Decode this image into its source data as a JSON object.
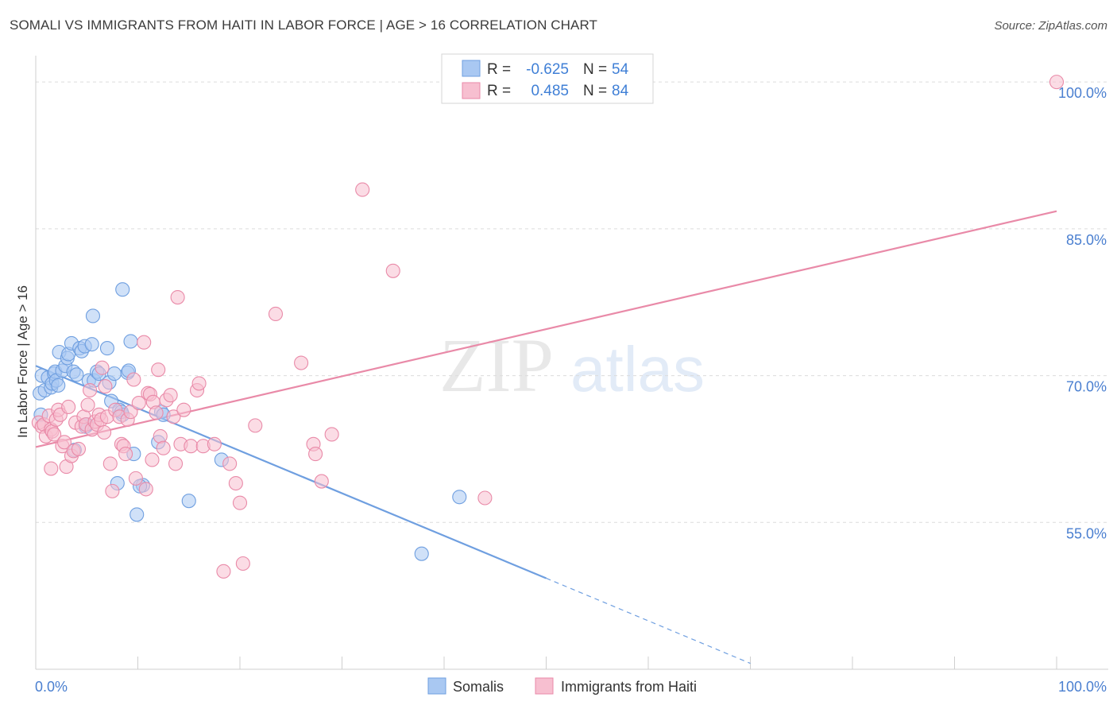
{
  "title": "SOMALI VS IMMIGRANTS FROM HAITI IN LABOR FORCE | AGE > 16 CORRELATION CHART",
  "source": "Source: ZipAtlas.com",
  "watermark": {
    "zip": "ZIP",
    "atlas": "atlas"
  },
  "legend": {
    "rows": [
      {
        "r_label": "R =",
        "r_value": "-0.625",
        "n_label": "N =",
        "n_value": "54",
        "color": "#a9c8f2",
        "stroke": "#6f9fe0"
      },
      {
        "r_label": "R =",
        "r_value": "0.485",
        "n_label": "N =",
        "n_value": "84",
        "color": "#f7bfd0",
        "stroke": "#e98aa8"
      }
    ]
  },
  "bottom_legend": [
    {
      "label": "Somalis",
      "color": "#a9c8f2",
      "stroke": "#6f9fe0"
    },
    {
      "label": "Immigrants from Haiti",
      "color": "#f7bfd0",
      "stroke": "#e98aa8"
    }
  ],
  "chart_data": {
    "type": "scatter",
    "title": "SOMALI VS IMMIGRANTS FROM HAITI IN LABOR FORCE | AGE > 16 CORRELATION CHART",
    "xlabel": "",
    "ylabel": "In Labor Force | Age > 16",
    "xlim": [
      0,
      100
    ],
    "ylim": [
      40,
      102
    ],
    "x_tick_labels": [
      {
        "value": 0,
        "label": "0.0%"
      },
      {
        "value": 100,
        "label": "100.0%"
      }
    ],
    "y_tick_labels": [
      {
        "value": 100,
        "label": "100.0%"
      },
      {
        "value": 85,
        "label": "85.0%"
      },
      {
        "value": 70,
        "label": "70.0%"
      },
      {
        "value": 55,
        "label": "55.0%"
      }
    ],
    "grid": true,
    "series": [
      {
        "name": "Somalis",
        "color": "#6f9fe0",
        "fill": "#a9c8f2",
        "trend": {
          "x0": 0,
          "y0": 71.0,
          "x1": 50,
          "y1": 49.3,
          "dash_to_x": 70,
          "dash_to_y": 40.6
        },
        "points": [
          [
            0.4,
            68.2
          ],
          [
            0.6,
            70.0
          ],
          [
            0.9,
            68.5
          ],
          [
            1.2,
            69.8
          ],
          [
            1.5,
            68.8
          ],
          [
            1.6,
            69.2
          ],
          [
            1.8,
            70.2
          ],
          [
            1.9,
            70.4
          ],
          [
            2.0,
            69.5
          ],
          [
            2.2,
            69.0
          ],
          [
            2.3,
            72.4
          ],
          [
            2.6,
            70.5
          ],
          [
            2.9,
            71.0
          ],
          [
            3.1,
            71.8
          ],
          [
            3.2,
            72.2
          ],
          [
            3.5,
            73.3
          ],
          [
            3.7,
            70.4
          ],
          [
            4.0,
            70.1
          ],
          [
            4.3,
            72.8
          ],
          [
            4.5,
            72.5
          ],
          [
            4.8,
            73.0
          ],
          [
            4.9,
            64.8
          ],
          [
            5.2,
            69.5
          ],
          [
            5.5,
            73.2
          ],
          [
            5.6,
            76.1
          ],
          [
            5.7,
            69.5
          ],
          [
            6.0,
            70.4
          ],
          [
            6.2,
            70.2
          ],
          [
            7.0,
            72.8
          ],
          [
            7.2,
            69.3
          ],
          [
            7.4,
            67.4
          ],
          [
            7.7,
            70.2
          ],
          [
            8.0,
            59.0
          ],
          [
            8.2,
            66.5
          ],
          [
            8.5,
            66.0
          ],
          [
            8.4,
            66.3
          ],
          [
            8.5,
            78.8
          ],
          [
            9.0,
            70.3
          ],
          [
            9.1,
            70.5
          ],
          [
            9.3,
            73.5
          ],
          [
            9.6,
            62.0
          ],
          [
            9.9,
            55.8
          ],
          [
            10.5,
            58.8
          ],
          [
            10.2,
            58.7
          ],
          [
            12.0,
            63.2
          ],
          [
            12.3,
            66.3
          ],
          [
            12.5,
            66.0
          ],
          [
            15.0,
            57.2
          ],
          [
            18.2,
            61.4
          ],
          [
            37.8,
            51.8
          ],
          [
            41.5,
            57.6
          ],
          [
            3.8,
            62.4
          ],
          [
            0.5,
            66.0
          ],
          [
            5.0,
            65.0
          ]
        ]
      },
      {
        "name": "Immigrants from Haiti",
        "color": "#e98aa8",
        "fill": "#f7bfd0",
        "trend": {
          "x0": 0,
          "y0": 62.7,
          "x1": 100,
          "y1": 86.8
        },
        "points": [
          [
            0.3,
            65.2
          ],
          [
            0.6,
            64.8
          ],
          [
            0.8,
            65.0
          ],
          [
            1.0,
            63.8
          ],
          [
            1.3,
            65.9
          ],
          [
            1.5,
            64.5
          ],
          [
            1.6,
            64.3
          ],
          [
            1.8,
            64.0
          ],
          [
            2.0,
            65.5
          ],
          [
            2.2,
            66.5
          ],
          [
            2.4,
            66.0
          ],
          [
            2.6,
            62.8
          ],
          [
            2.8,
            63.2
          ],
          [
            3.0,
            60.7
          ],
          [
            3.2,
            66.8
          ],
          [
            3.5,
            61.8
          ],
          [
            3.7,
            62.3
          ],
          [
            3.9,
            65.2
          ],
          [
            4.2,
            62.5
          ],
          [
            4.5,
            64.8
          ],
          [
            4.7,
            65.8
          ],
          [
            4.9,
            65.0
          ],
          [
            5.1,
            67.0
          ],
          [
            5.3,
            68.5
          ],
          [
            5.5,
            64.5
          ],
          [
            5.8,
            65.3
          ],
          [
            6.0,
            65.0
          ],
          [
            6.2,
            66.0
          ],
          [
            6.4,
            65.5
          ],
          [
            6.5,
            70.8
          ],
          [
            6.7,
            64.2
          ],
          [
            7.0,
            65.8
          ],
          [
            7.3,
            61.0
          ],
          [
            7.5,
            58.2
          ],
          [
            7.8,
            66.5
          ],
          [
            8.2,
            65.8
          ],
          [
            8.4,
            63.0
          ],
          [
            8.6,
            62.8
          ],
          [
            8.8,
            62.0
          ],
          [
            9.0,
            65.5
          ],
          [
            9.3,
            66.3
          ],
          [
            9.6,
            69.6
          ],
          [
            9.8,
            59.5
          ],
          [
            10.1,
            67.2
          ],
          [
            10.6,
            73.4
          ],
          [
            10.8,
            58.4
          ],
          [
            11.0,
            68.2
          ],
          [
            11.2,
            68.1
          ],
          [
            11.5,
            67.3
          ],
          [
            11.8,
            66.2
          ],
          [
            12.0,
            70.6
          ],
          [
            12.2,
            63.8
          ],
          [
            12.5,
            62.6
          ],
          [
            12.8,
            67.5
          ],
          [
            13.2,
            68.0
          ],
          [
            13.5,
            65.8
          ],
          [
            13.7,
            61.0
          ],
          [
            13.9,
            78.0
          ],
          [
            14.2,
            63.0
          ],
          [
            14.5,
            66.5
          ],
          [
            15.2,
            62.8
          ],
          [
            15.8,
            68.5
          ],
          [
            16.0,
            69.2
          ],
          [
            16.4,
            62.8
          ],
          [
            17.5,
            63.0
          ],
          [
            18.4,
            50.0
          ],
          [
            19.0,
            61.0
          ],
          [
            19.6,
            59.0
          ],
          [
            20.0,
            57.0
          ],
          [
            20.3,
            50.8
          ],
          [
            21.5,
            64.9
          ],
          [
            23.5,
            76.3
          ],
          [
            26.0,
            71.3
          ],
          [
            27.2,
            63.0
          ],
          [
            27.4,
            62.0
          ],
          [
            28.0,
            59.2
          ],
          [
            29.0,
            64.0
          ],
          [
            32.0,
            89.0
          ],
          [
            35.0,
            80.7
          ],
          [
            44.0,
            57.5
          ],
          [
            100.0,
            100.0
          ],
          [
            1.5,
            60.5
          ],
          [
            6.8,
            68.9
          ],
          [
            11.4,
            61.4
          ]
        ]
      }
    ]
  }
}
